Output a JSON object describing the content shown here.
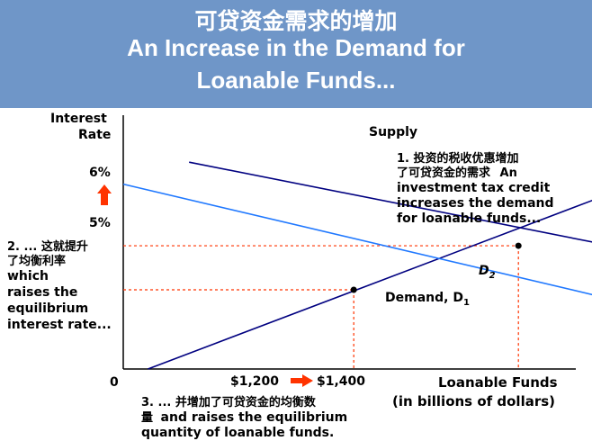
{
  "banner": {
    "title_zh": "可贷资金需求的增加",
    "title_en_1": "An Increase in the Demand for",
    "title_en_2": "Loanable Funds..."
  },
  "colors": {
    "banner": "#6f96c8",
    "supply": "#000080",
    "demand_d1": "#1f78ff",
    "demand_d2": "#000080",
    "guide": "#ff3300",
    "arrow": "#ff3300"
  },
  "chart_data": {
    "type": "line",
    "ylabel_1": "Interest",
    "ylabel_2": "Rate",
    "xlabel_1": "Loanable Funds",
    "xlabel_2": "(in billions of dollars)",
    "origin_label": "0",
    "y_ticks": [
      {
        "label": "5%",
        "value": 5
      },
      {
        "label": "6%",
        "value": 6
      }
    ],
    "x_ticks": [
      {
        "label": "$1,200",
        "value": 1200
      },
      {
        "label": "$1,400",
        "value": 1400
      }
    ],
    "series": [
      {
        "name": "Supply",
        "points": [
          [
            950,
            3.2
          ],
          [
            1570,
            7.6
          ]
        ]
      },
      {
        "name": "Demand, D1",
        "points": [
          [
            920,
            7.4
          ],
          [
            1760,
            3.7
          ]
        ]
      },
      {
        "name": "D2",
        "points": [
          [
            1000,
            7.9
          ],
          [
            2080,
            3.9
          ]
        ]
      }
    ],
    "equilibria": [
      {
        "x": 1200,
        "y": 5
      },
      {
        "x": 1400,
        "y": 6
      }
    ],
    "shift_arrow": {
      "from": [
        1680,
        4.65
      ],
      "to": [
        1870,
        4.65
      ]
    },
    "annotations": {
      "a1_zh_1": "1. 投资的税收优惠增加",
      "a1_zh_2": "了可贷资金的需求",
      "a1_en_head": "An",
      "a1_en_1": "investment tax credit",
      "a1_en_2": "increases the demand",
      "a1_en_3": "for loanable funds...",
      "a2_zh_1": "2. ... 这就提升",
      "a2_zh_2": "了均衡利率",
      "a2_en_1": "which",
      "a2_en_2": "raises the",
      "a2_en_3": "equilibrium",
      "a2_en_4": "interest rate...",
      "a3_zh_1": "3. ... 并增加了可贷资金的均衡数",
      "a3_zh_2": "量",
      "a3_en_1": "and raises the equilibrium",
      "a3_en_2": "quantity of loanable funds."
    },
    "labels": {
      "supply": "Supply",
      "demand": "Demand, D",
      "demand_sub": "1",
      "d2": "D",
      "d2_sub": "2"
    }
  }
}
